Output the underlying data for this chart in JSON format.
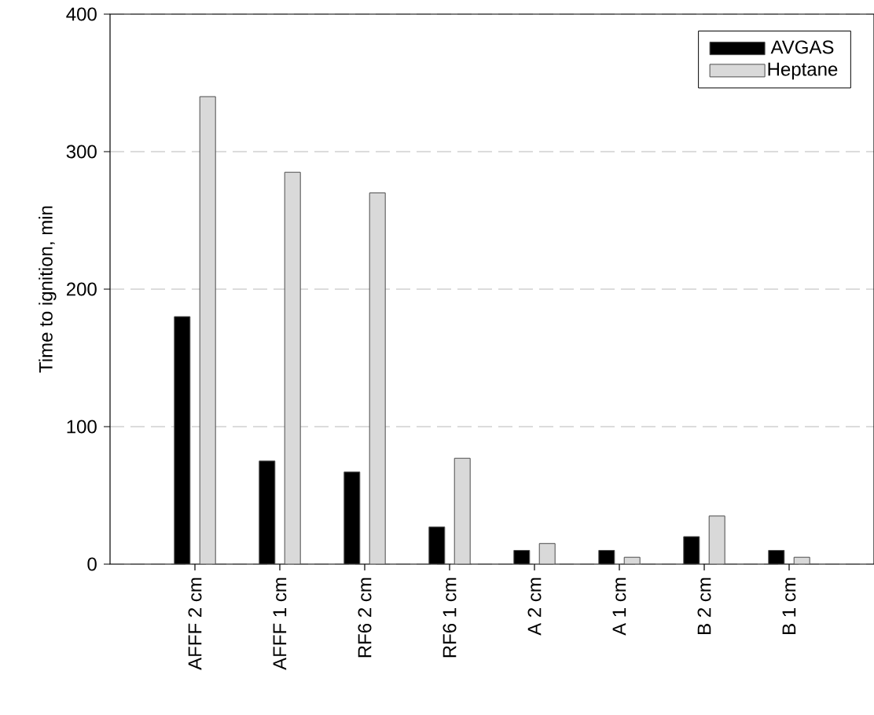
{
  "chart_data": {
    "type": "bar",
    "ylabel": "Time to ignition, min",
    "categories": [
      "AFFF 2 cm",
      "AFFF 1 cm",
      "RF6 2 cm",
      "RF6 1 cm",
      "A 2 cm",
      "A 1 cm",
      "B 2 cm",
      "B 1 cm"
    ],
    "series": [
      {
        "name": "AVGAS",
        "color": "#000000",
        "values": [
          180,
          75,
          67,
          27,
          10,
          10,
          20,
          10
        ]
      },
      {
        "name": "Heptane",
        "color": "#d9d9d9",
        "values": [
          340,
          285,
          270,
          77,
          15,
          5,
          35,
          5
        ]
      }
    ],
    "ylim": [
      0,
      400
    ],
    "yticks": [
      0,
      100,
      200,
      300,
      400
    ],
    "grid": "y",
    "legend": "top right"
  }
}
